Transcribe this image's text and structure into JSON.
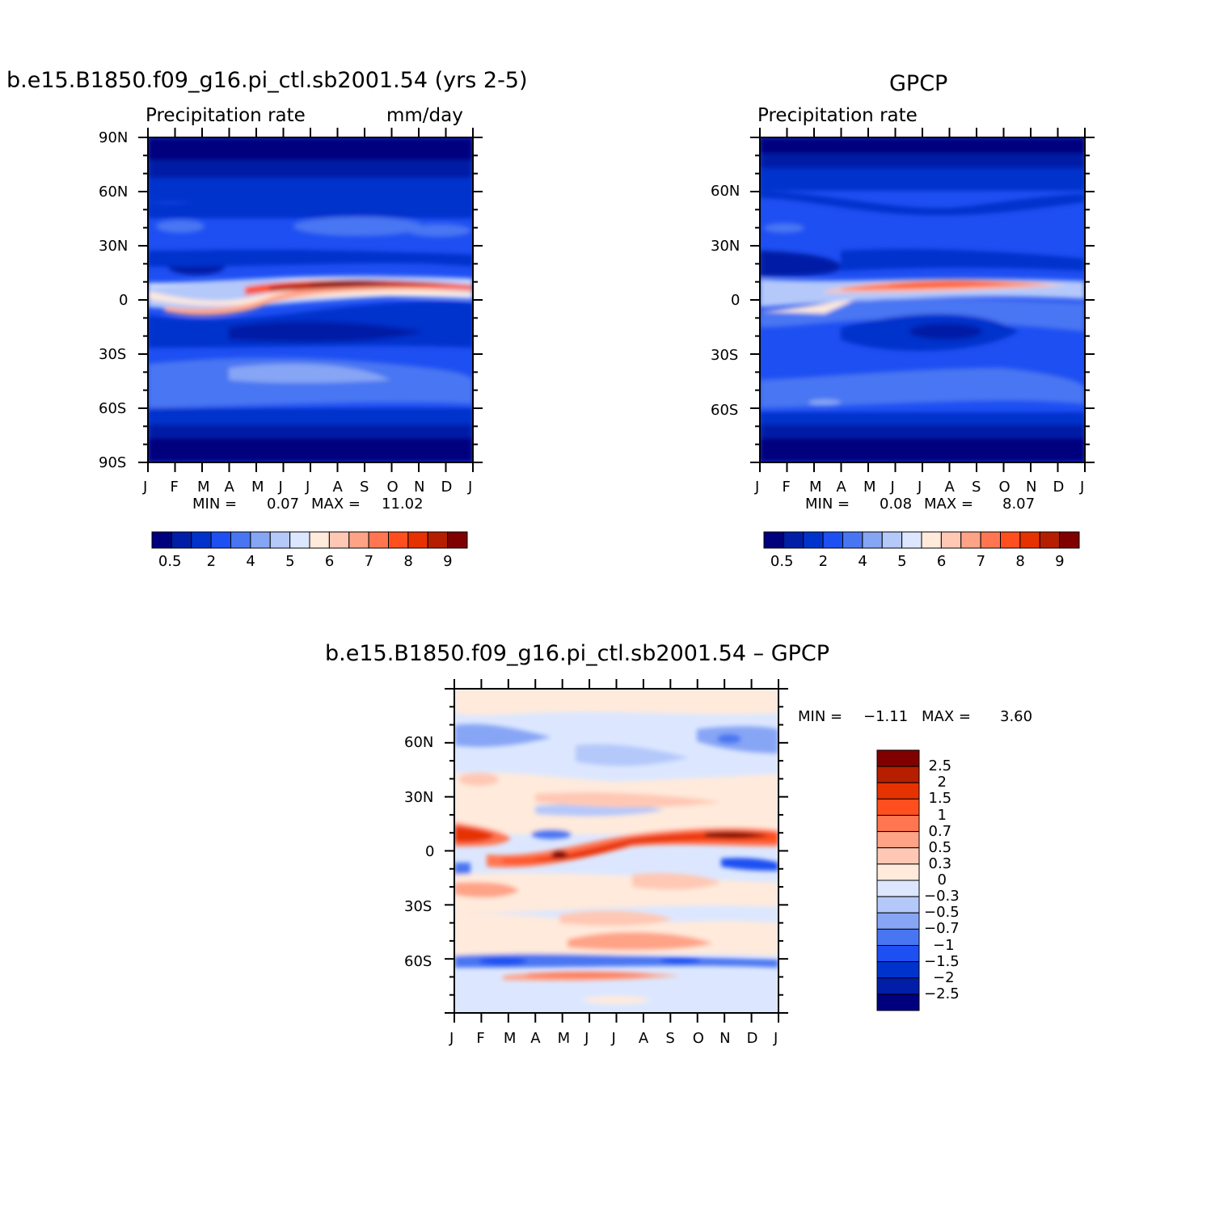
{
  "palette": [
    "#00007f",
    "#001ea6",
    "#0033cc",
    "#1e4ff2",
    "#4876f2",
    "#87a5f5",
    "#b4c8fa",
    "#dce7ff",
    "#ffeadb",
    "#ffc8b4",
    "#ffa387",
    "#ff7651",
    "#ff4f1e",
    "#e63200",
    "#b51f00",
    "#800000"
  ],
  "months": [
    "J",
    "F",
    "M",
    "A",
    "M",
    "J",
    "J",
    "A",
    "S",
    "O",
    "N",
    "D",
    "J"
  ],
  "chart_data": [
    {
      "type": "heatmap",
      "title": "b.e15.B1850.f09_g16.pi_ctl.sb2001.54 (yrs 2-5)",
      "left_subtitle": "Precipitation rate",
      "right_subtitle": "mm/day",
      "x": "month",
      "y_tick_labels": [
        "90N",
        "60N",
        "30N",
        "0",
        "30S",
        "60S",
        "90S"
      ],
      "x_tick_labels": [
        "J",
        "F",
        "M",
        "A",
        "M",
        "J",
        "J",
        "A",
        "S",
        "O",
        "N",
        "D",
        "J"
      ],
      "min_text": "MIN =",
      "min_value": "0.07",
      "max_text": "MAX =",
      "max_value": "11.02",
      "colorbar_labels": [
        "0.5",
        "2",
        "4",
        "5",
        "6",
        "7",
        "8",
        "9"
      ],
      "ylim": [
        -90,
        90
      ]
    },
    {
      "type": "heatmap",
      "title": "GPCP",
      "left_subtitle": "Precipitation rate",
      "x": "month",
      "y_tick_labels": [
        "60N",
        "30N",
        "0",
        "30S",
        "60S"
      ],
      "x_tick_labels": [
        "J",
        "F",
        "M",
        "A",
        "M",
        "J",
        "J",
        "A",
        "S",
        "O",
        "N",
        "D",
        "J"
      ],
      "min_text": "MIN =",
      "min_value": "0.08",
      "max_text": "MAX =",
      "max_value": "8.07",
      "colorbar_labels": [
        "0.5",
        "2",
        "4",
        "5",
        "6",
        "7",
        "8",
        "9"
      ],
      "ylim": [
        -90,
        90
      ]
    },
    {
      "type": "heatmap",
      "title": "b.e15.B1850.f09_g16.pi_ctl.sb2001.54 – GPCP",
      "x": "month",
      "y_tick_labels": [
        "60N",
        "30N",
        "0",
        "30S",
        "60S"
      ],
      "x_tick_labels": [
        "J",
        "F",
        "M",
        "A",
        "M",
        "J",
        "J",
        "A",
        "S",
        "O",
        "N",
        "D",
        "J"
      ],
      "min_text": "MIN =",
      "min_value": "−1.11",
      "max_text": "MAX =",
      "max_value": "3.60",
      "colorbar_labels": [
        "2.5",
        "2",
        "1.5",
        "1",
        "0.7",
        "0.5",
        "0.3",
        "0",
        "−0.3",
        "−0.5",
        "−0.7",
        "−1",
        "−1.5",
        "−2",
        "−2.5"
      ],
      "ylim": [
        -90,
        90
      ]
    }
  ]
}
